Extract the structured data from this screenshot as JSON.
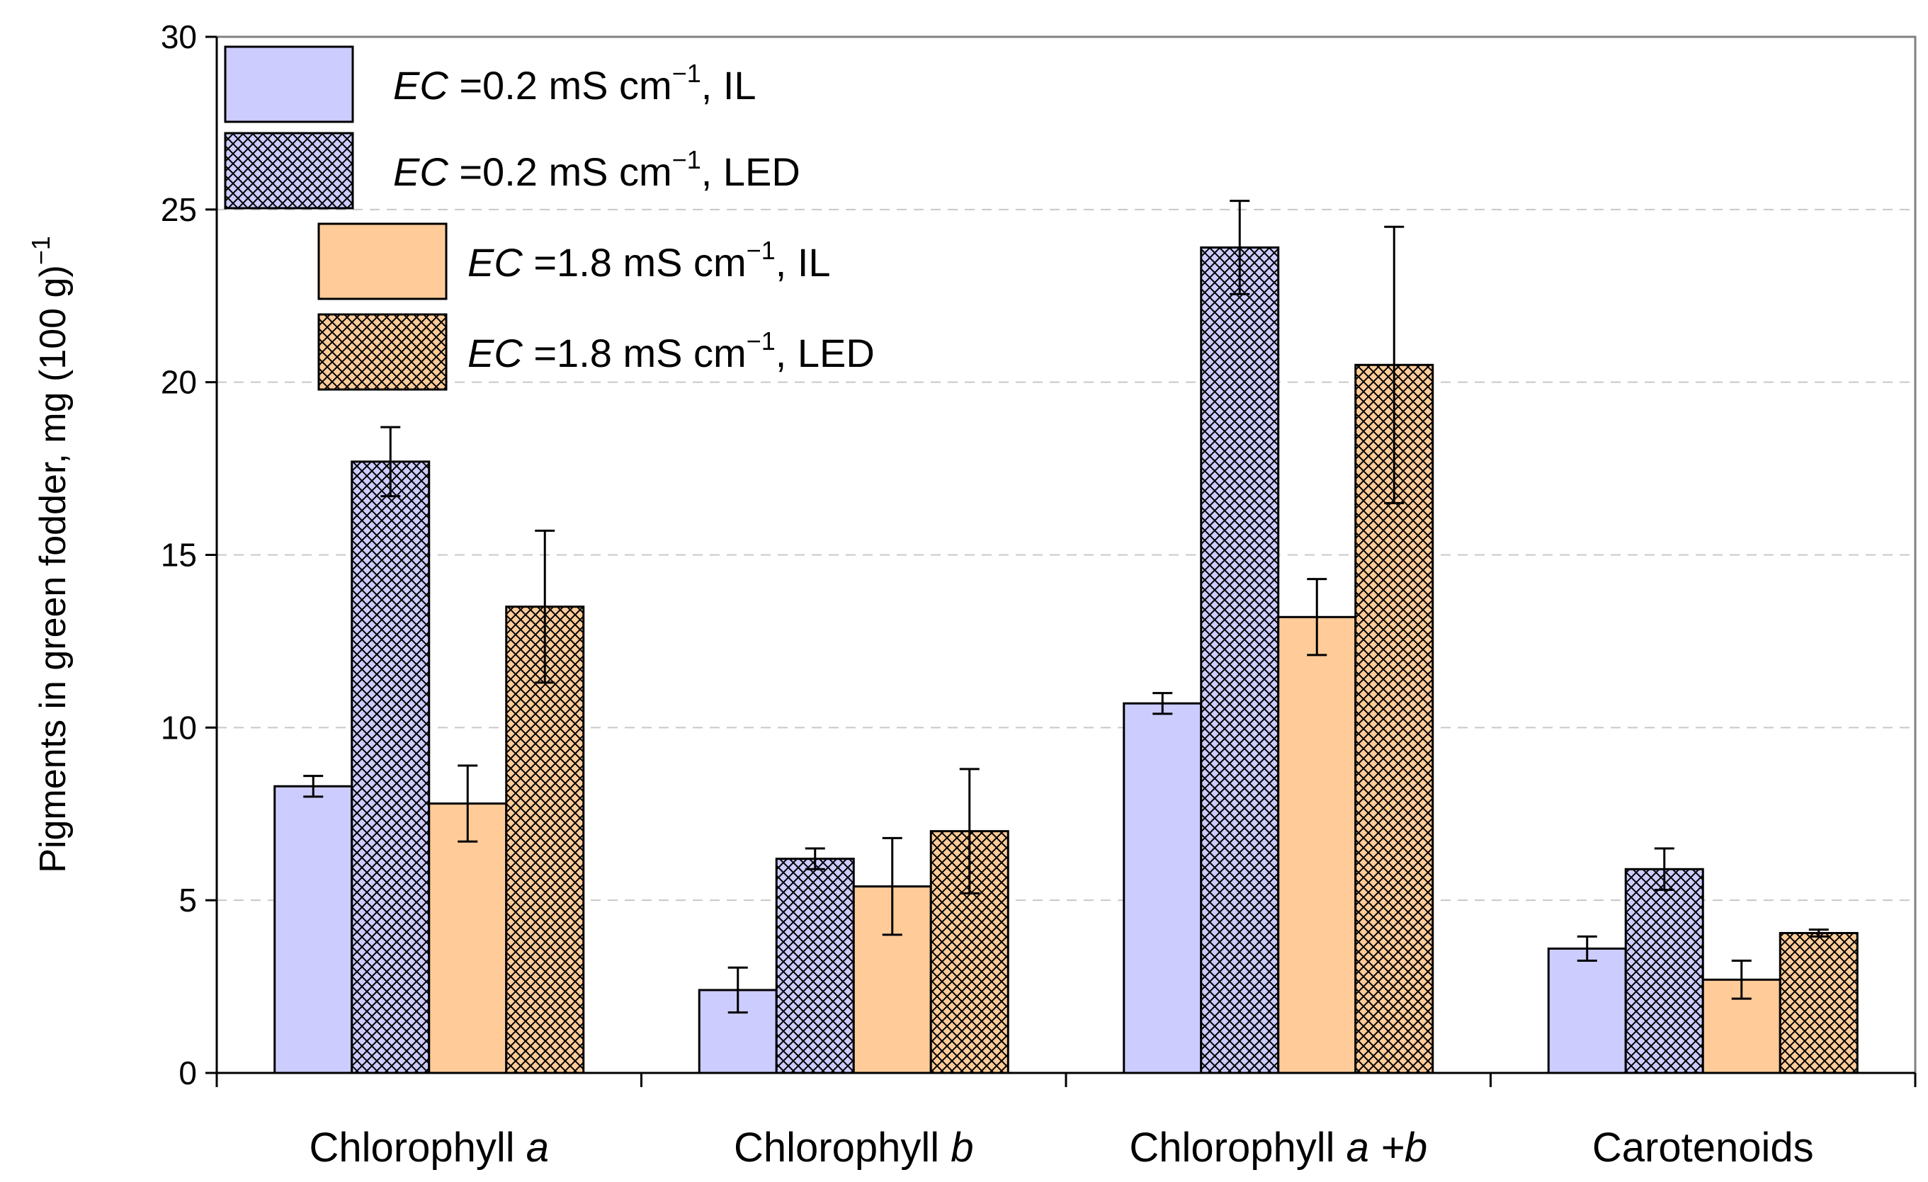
{
  "chart_data": {
    "type": "bar",
    "ylabel": "Pigments in green fodder,  mg (100 g)",
    "ylabel_sup": "−1",
    "ylim": [
      0,
      30
    ],
    "yticks": [
      "0",
      "5",
      "10",
      "15",
      "20",
      "25",
      "30"
    ],
    "ytick_values": [
      0,
      5,
      10,
      15,
      20,
      25,
      30
    ],
    "grid": "horizontal dashed",
    "legend_position": "top-left",
    "categories": [
      {
        "text": "Chlorophyll ",
        "ital": "a"
      },
      {
        "text": "Chlorophyll ",
        "ital": "b"
      },
      {
        "text": "Chlorophyll ",
        "ital": "a +b"
      },
      {
        "text": "Carotenoids",
        "ital": ""
      }
    ],
    "series": [
      {
        "name_ital": "EC",
        "name_main": " =0.2 mS cm",
        "name_sup": "−1",
        "name_tail": ", IL",
        "fill_color": "#ccccff",
        "pattern": "solid",
        "values": [
          8.3,
          2.4,
          10.7,
          3.6
        ],
        "errors": [
          0.3,
          0.65,
          0.3,
          0.35
        ]
      },
      {
        "name_ital": "EC",
        "name_main": " =0.2 mS cm",
        "name_sup": "−1",
        "name_tail": ", LED",
        "fill_color": "#ccccff",
        "pattern": "crosshatch",
        "values": [
          17.7,
          6.2,
          23.9,
          5.9
        ],
        "errors": [
          1.0,
          0.3,
          1.35,
          0.6
        ]
      },
      {
        "name_ital": "EC",
        "name_main": " =1.8 mS cm",
        "name_sup": "−1",
        "name_tail": ", IL",
        "fill_color": "#ffcc99",
        "pattern": "solid",
        "values": [
          7.8,
          5.4,
          13.2,
          2.7
        ],
        "errors": [
          1.1,
          1.4,
          1.1,
          0.55
        ]
      },
      {
        "name_ital": "EC",
        "name_main": " =1.8 mS cm",
        "name_sup": "−1",
        "name_tail": ", LED",
        "fill_color": "#ffcc99",
        "pattern": "crosshatch",
        "values": [
          13.5,
          7.0,
          20.5,
          4.05
        ],
        "errors": [
          2.2,
          1.8,
          4.0,
          0.1
        ]
      }
    ]
  }
}
